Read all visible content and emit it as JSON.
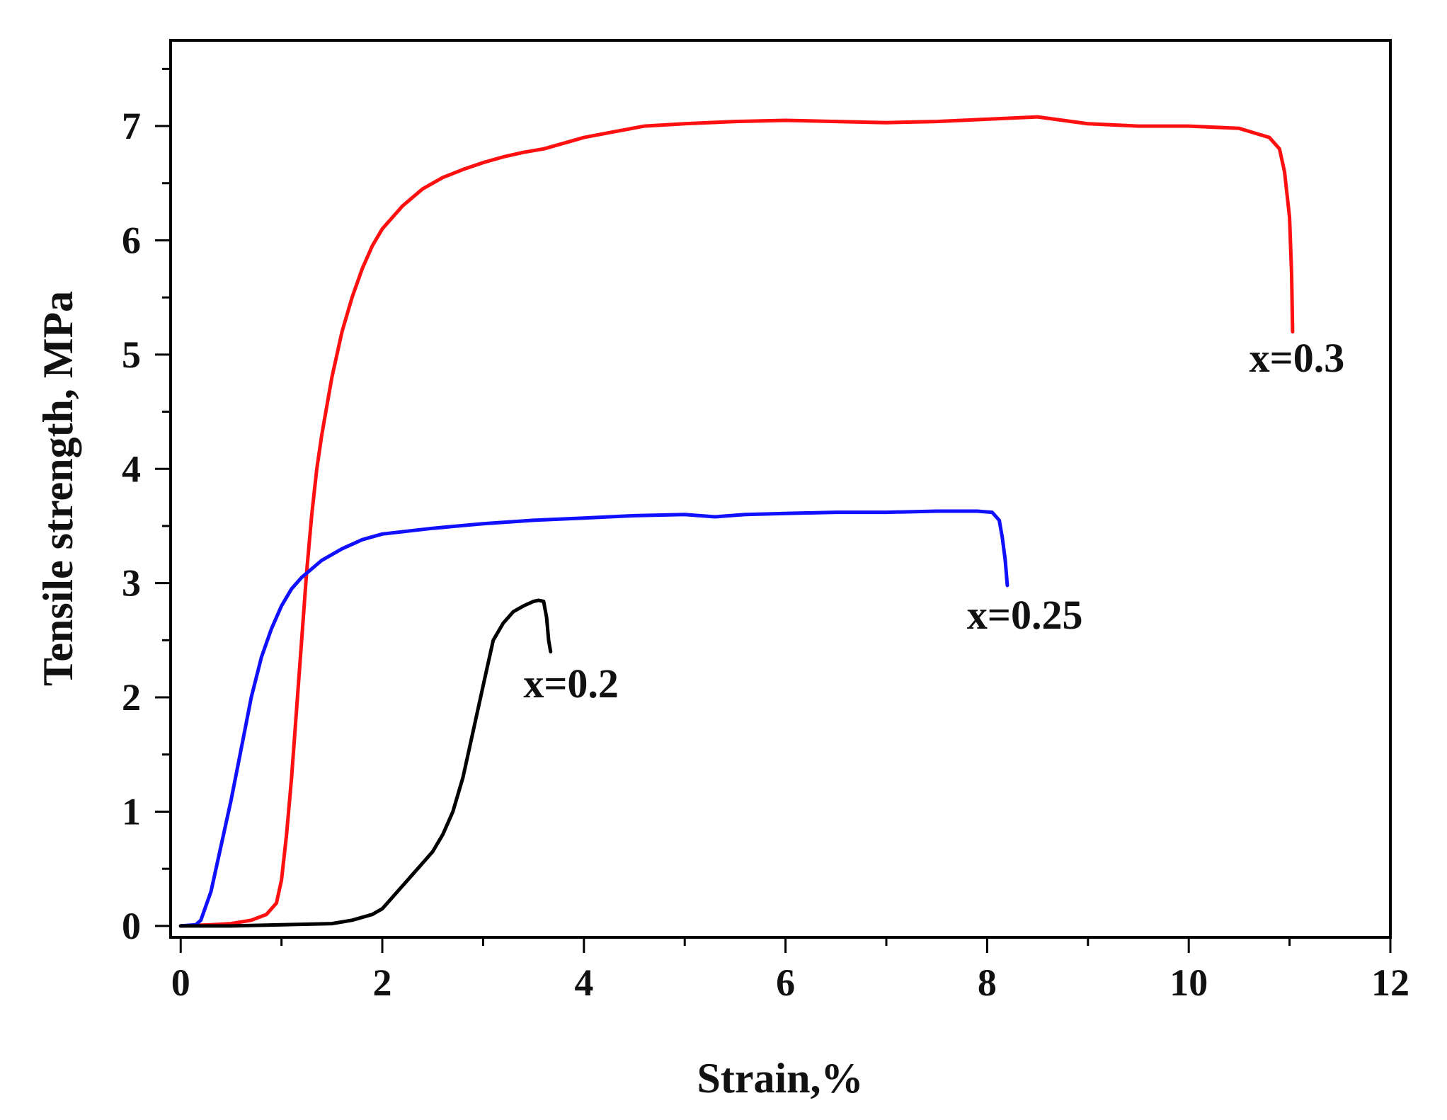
{
  "chart_data": {
    "type": "line",
    "xlabel": "Strain,%",
    "ylabel": "Tensile strength, MPa",
    "xlim": [
      -0.1,
      12
    ],
    "ylim": [
      -0.1,
      7.75
    ],
    "x_ticks": [
      0,
      2,
      4,
      6,
      8,
      10,
      12
    ],
    "y_ticks": [
      0,
      1,
      2,
      3,
      4,
      5,
      6,
      7
    ],
    "x_minor_step": 1,
    "y_minor_step": 0.5,
    "grid": false,
    "series": [
      {
        "name": "x=0.3",
        "label": "x=0.3",
        "color": "#ff1010",
        "label_at": [
          10.6,
          4.85
        ],
        "x": [
          0,
          0.3,
          0.5,
          0.7,
          0.85,
          0.95,
          1.0,
          1.05,
          1.1,
          1.15,
          1.2,
          1.25,
          1.3,
          1.35,
          1.4,
          1.5,
          1.6,
          1.7,
          1.8,
          1.9,
          2.0,
          2.2,
          2.4,
          2.6,
          2.8,
          3.0,
          3.2,
          3.4,
          3.6,
          3.8,
          4.0,
          4.3,
          4.6,
          5.0,
          5.5,
          6.0,
          6.5,
          7.0,
          7.5,
          8.0,
          8.5,
          9.0,
          9.5,
          10.0,
          10.5,
          10.8,
          10.9,
          10.95,
          11.0,
          11.02,
          11.03
        ],
        "y": [
          0,
          0.01,
          0.02,
          0.05,
          0.1,
          0.2,
          0.4,
          0.8,
          1.3,
          1.9,
          2.5,
          3.1,
          3.6,
          4.0,
          4.3,
          4.8,
          5.2,
          5.5,
          5.75,
          5.95,
          6.1,
          6.3,
          6.45,
          6.55,
          6.62,
          6.68,
          6.73,
          6.77,
          6.8,
          6.85,
          6.9,
          6.95,
          7.0,
          7.02,
          7.04,
          7.05,
          7.04,
          7.03,
          7.04,
          7.06,
          7.08,
          7.02,
          7.0,
          7.0,
          6.98,
          6.9,
          6.8,
          6.6,
          6.2,
          5.7,
          5.2
        ]
      },
      {
        "name": "x=0.25",
        "label": "x=0.25",
        "color": "#1010ff",
        "label_at": [
          7.8,
          2.6
        ],
        "x": [
          0,
          0.15,
          0.2,
          0.3,
          0.4,
          0.5,
          0.6,
          0.7,
          0.8,
          0.9,
          1.0,
          1.1,
          1.2,
          1.4,
          1.6,
          1.8,
          2.0,
          2.5,
          3.0,
          3.5,
          4.0,
          4.5,
          5.0,
          5.3,
          5.6,
          6.0,
          6.5,
          7.0,
          7.5,
          7.9,
          8.05,
          8.12,
          8.15,
          8.18,
          8.2
        ],
        "y": [
          0,
          0.01,
          0.05,
          0.3,
          0.7,
          1.1,
          1.55,
          2.0,
          2.35,
          2.6,
          2.8,
          2.95,
          3.05,
          3.2,
          3.3,
          3.38,
          3.43,
          3.48,
          3.52,
          3.55,
          3.57,
          3.59,
          3.6,
          3.58,
          3.6,
          3.61,
          3.62,
          3.62,
          3.63,
          3.63,
          3.62,
          3.55,
          3.4,
          3.2,
          2.98
        ]
      },
      {
        "name": "x=0.2",
        "label": "x=0.2",
        "color": "#000000",
        "label_at": [
          3.4,
          2.0
        ],
        "x": [
          0,
          0.5,
          1.0,
          1.5,
          1.7,
          1.9,
          2.0,
          2.1,
          2.2,
          2.3,
          2.4,
          2.5,
          2.6,
          2.7,
          2.8,
          2.9,
          3.0,
          3.1,
          3.2,
          3.3,
          3.4,
          3.5,
          3.55,
          3.6,
          3.63,
          3.65,
          3.67
        ],
        "y": [
          0,
          0.0,
          0.01,
          0.02,
          0.05,
          0.1,
          0.15,
          0.25,
          0.35,
          0.45,
          0.55,
          0.65,
          0.8,
          1.0,
          1.3,
          1.7,
          2.1,
          2.5,
          2.65,
          2.75,
          2.8,
          2.84,
          2.85,
          2.84,
          2.7,
          2.5,
          2.4
        ]
      }
    ]
  }
}
